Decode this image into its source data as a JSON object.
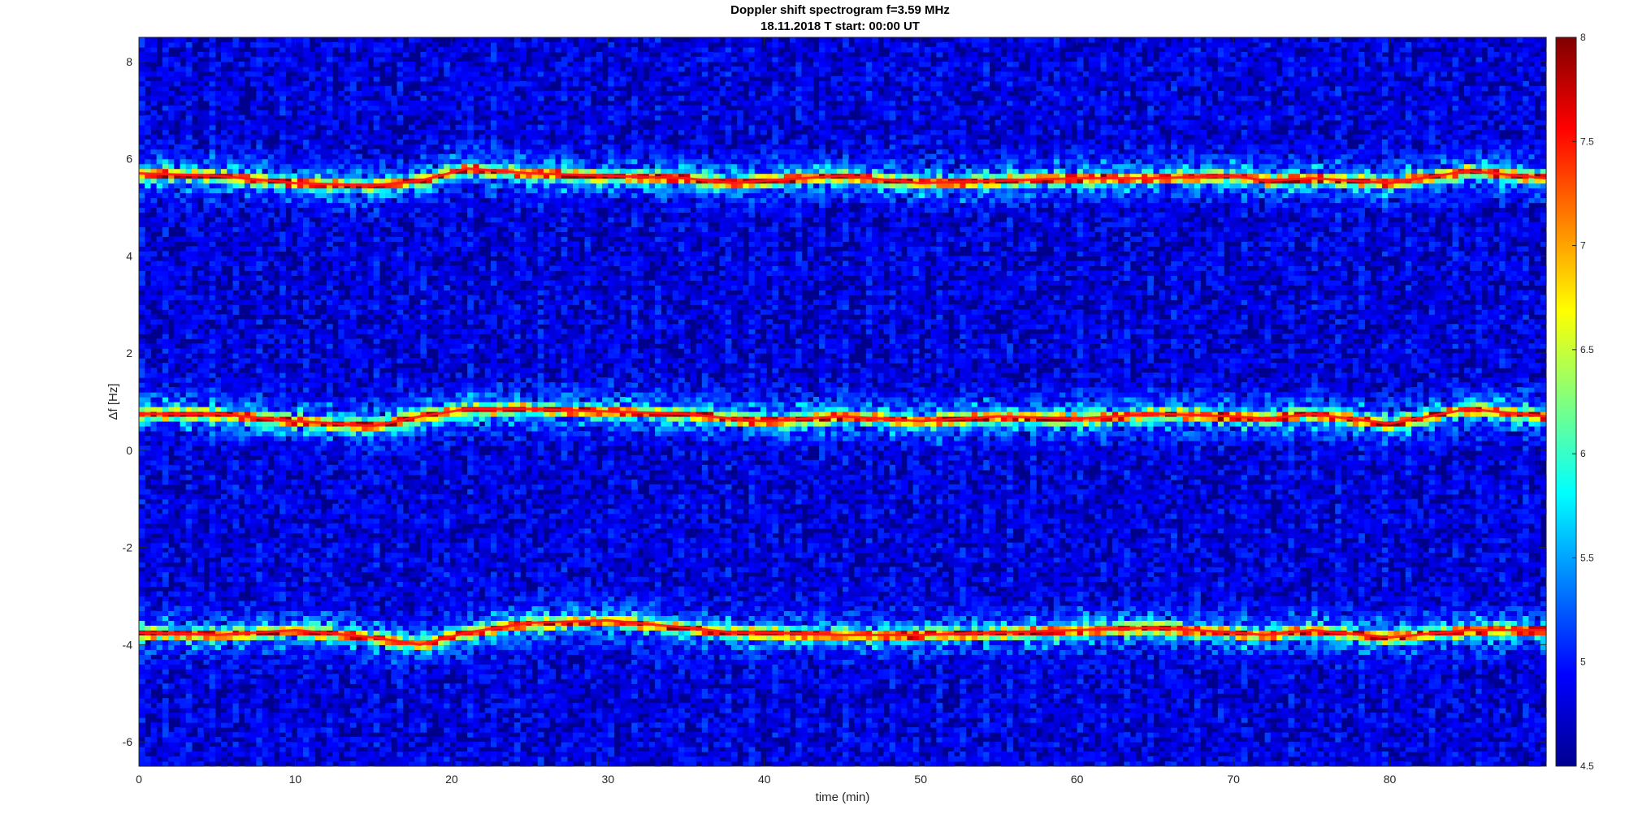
{
  "chart_data": {
    "type": "heatmap",
    "title": "Doppler shift spectrogram f=3.59 MHz",
    "subtitle": "18.11.2018   T start: 00:00 UT",
    "xlabel": "time (min)",
    "ylabel": "Δf [Hz]",
    "xlim": [
      0,
      90
    ],
    "ylim": [
      -6.5,
      8.5
    ],
    "x_ticks": [
      0,
      10,
      20,
      30,
      40,
      50,
      60,
      70,
      80
    ],
    "y_ticks": [
      -6,
      -4,
      -2,
      0,
      2,
      4,
      6,
      8
    ],
    "colorbar": {
      "range": [
        4.5,
        8
      ],
      "ticks": [
        "4.5",
        "5",
        "5.5",
        "6",
        "6.5",
        "7",
        "7.5",
        "8"
      ],
      "colormap": "jet"
    },
    "background_level": 4.8,
    "bands": [
      {
        "x": [
          0,
          5,
          10,
          15,
          18,
          21,
          25,
          30,
          35,
          38,
          40,
          45,
          50,
          55,
          60,
          65,
          70,
          72,
          75,
          80,
          85,
          90
        ],
        "y": [
          5.7,
          5.65,
          5.5,
          5.45,
          5.55,
          5.8,
          5.7,
          5.65,
          5.6,
          5.5,
          5.55,
          5.65,
          5.5,
          5.55,
          5.6,
          5.6,
          5.65,
          5.55,
          5.6,
          5.5,
          5.75,
          5.6
        ],
        "peak": 7.8
      },
      {
        "x": [
          0,
          5,
          10,
          15,
          18,
          21,
          25,
          30,
          35,
          38,
          40,
          45,
          50,
          55,
          60,
          65,
          70,
          72,
          75,
          80,
          85,
          90
        ],
        "y": [
          0.75,
          0.75,
          0.6,
          0.5,
          0.7,
          0.85,
          0.85,
          0.8,
          0.75,
          0.65,
          0.6,
          0.7,
          0.6,
          0.7,
          0.65,
          0.75,
          0.7,
          0.65,
          0.75,
          0.55,
          0.85,
          0.7
        ],
        "peak": 7.9
      },
      {
        "x": [
          0,
          5,
          10,
          15,
          18,
          21,
          25,
          30,
          35,
          38,
          40,
          45,
          50,
          55,
          60,
          65,
          70,
          72,
          75,
          80,
          85,
          90
        ],
        "y": [
          -3.75,
          -3.8,
          -3.7,
          -3.85,
          -4.0,
          -3.75,
          -3.55,
          -3.5,
          -3.65,
          -3.75,
          -3.75,
          -3.8,
          -3.8,
          -3.75,
          -3.7,
          -3.65,
          -3.75,
          -3.8,
          -3.7,
          -3.85,
          -3.7,
          -3.7
        ],
        "peak": 7.8
      }
    ]
  }
}
